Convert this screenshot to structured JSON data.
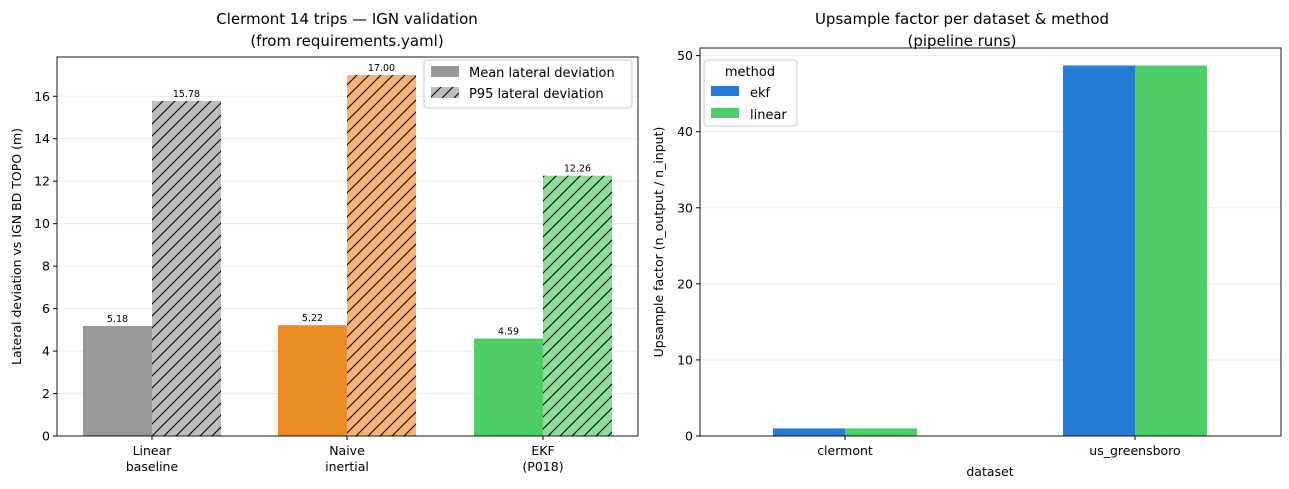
{
  "chart_data": [
    {
      "type": "bar",
      "title": "Clermont 14 trips — IGN validation",
      "subtitle": "(from requirements.yaml)",
      "xlabel": "",
      "ylabel": "Lateral deviation vs IGN BD TOPO (m)",
      "ylim": [
        0,
        17.85
      ],
      "yticks": [
        "0",
        "2",
        "4",
        "6",
        "8",
        "10",
        "12",
        "14",
        "16"
      ],
      "grid": "y",
      "categories": [
        [
          "Linear",
          "baseline"
        ],
        [
          "Naive",
          "inertial"
        ],
        [
          "EKF",
          "(P018)"
        ]
      ],
      "bar_colors": [
        "#999999",
        "#eb8c26",
        "#4ccd68"
      ],
      "p95_colors": [
        "#bdbdbd",
        "#f2b377",
        "#8ddb9b"
      ],
      "series": [
        {
          "name": "Mean lateral deviation",
          "values": [
            5.18,
            5.22,
            4.59
          ],
          "labels": [
            "5.18",
            "5.22",
            "4.59"
          ],
          "hatch": false
        },
        {
          "name": "P95 lateral deviation",
          "values": [
            15.78,
            17.0,
            12.26
          ],
          "labels": [
            "15.78",
            "17.00",
            "12.26"
          ],
          "hatch": true
        }
      ],
      "legend": {
        "position": "upper right",
        "mean_color": "#999999",
        "p95_color": "#bdbdbd"
      }
    },
    {
      "type": "bar",
      "title": "Upsample factor per dataset & method",
      "subtitle": "(pipeline runs)",
      "xlabel": "dataset",
      "ylabel": "Upsample factor (n_output / n_input)",
      "ylim": [
        0,
        51
      ],
      "yticks": [
        "0",
        "10",
        "20",
        "30",
        "40",
        "50"
      ],
      "grid": "y",
      "categories": [
        "clermont",
        "us_greensboro"
      ],
      "legend_title": "method",
      "legend": {
        "position": "upper left"
      },
      "series": [
        {
          "name": "ekf",
          "color": "#257cd6",
          "values": [
            1.0,
            48.7
          ]
        },
        {
          "name": "linear",
          "color": "#4ccd68",
          "values": [
            1.0,
            48.7
          ]
        }
      ]
    }
  ]
}
